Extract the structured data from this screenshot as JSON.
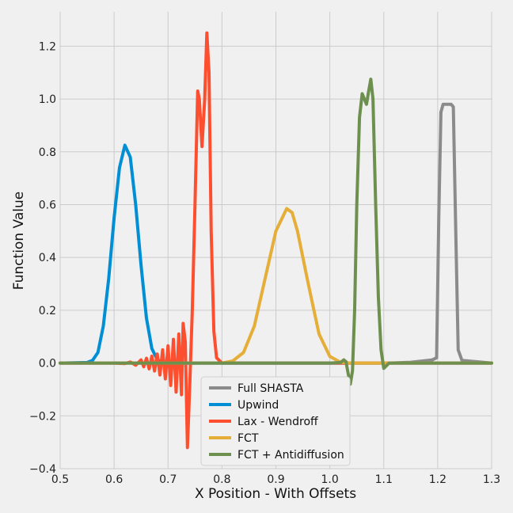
{
  "chart_data": {
    "type": "line",
    "xlabel": "X Position - With Offsets",
    "ylabel": "Function Value",
    "xlim": [
      0.5,
      1.3
    ],
    "ylim": [
      -0.4,
      1.33
    ],
    "xticks": [
      0.5,
      0.6,
      0.7,
      0.8,
      0.9,
      1.0,
      1.1,
      1.2,
      1.3
    ],
    "xtick_labels": [
      "0.5",
      "0.6",
      "0.7",
      "0.8",
      "0.9",
      "1.0",
      "1.1",
      "1.2",
      "1.3"
    ],
    "yticks": [
      -0.4,
      -0.2,
      0.0,
      0.2,
      0.4,
      0.6,
      0.8,
      1.0,
      1.2
    ],
    "ytick_labels": [
      "−0.4",
      "−0.2",
      "0.0",
      "0.2",
      "0.4",
      "0.6",
      "0.8",
      "1.0",
      "1.2"
    ],
    "grid": true,
    "legend_position": "bottom-center",
    "series": [
      {
        "name": "Full SHASTA",
        "color": "#8b8b8b",
        "points": [
          [
            0.5,
            0
          ],
          [
            1.11,
            0
          ],
          [
            1.15,
            0.003
          ],
          [
            1.19,
            0.012
          ],
          [
            1.198,
            0.02
          ],
          [
            1.202,
            0.55
          ],
          [
            1.206,
            0.95
          ],
          [
            1.21,
            0.98
          ],
          [
            1.225,
            0.98
          ],
          [
            1.229,
            0.97
          ],
          [
            1.233,
            0.55
          ],
          [
            1.238,
            0.05
          ],
          [
            1.245,
            0.01
          ],
          [
            1.3,
            0
          ]
        ]
      },
      {
        "name": "Upwind",
        "color": "#008fd5",
        "points": [
          [
            0.5,
            0
          ],
          [
            0.55,
            0.002
          ],
          [
            0.56,
            0.01
          ],
          [
            0.57,
            0.04
          ],
          [
            0.58,
            0.14
          ],
          [
            0.59,
            0.32
          ],
          [
            0.6,
            0.55
          ],
          [
            0.61,
            0.74
          ],
          [
            0.62,
            0.825
          ],
          [
            0.63,
            0.78
          ],
          [
            0.64,
            0.6
          ],
          [
            0.65,
            0.37
          ],
          [
            0.66,
            0.17
          ],
          [
            0.67,
            0.055
          ],
          [
            0.68,
            0.013
          ],
          [
            0.69,
            0.002
          ],
          [
            0.7,
            0
          ],
          [
            1.3,
            0
          ]
        ]
      },
      {
        "name": "Lax - Wendroff",
        "color": "#fc4f30",
        "points": [
          [
            0.5,
            0
          ],
          [
            0.6,
            0
          ],
          [
            0.62,
            -0.002
          ],
          [
            0.63,
            0.004
          ],
          [
            0.64,
            -0.008
          ],
          [
            0.65,
            0.012
          ],
          [
            0.655,
            -0.014
          ],
          [
            0.66,
            0.018
          ],
          [
            0.665,
            -0.022
          ],
          [
            0.67,
            0.026
          ],
          [
            0.675,
            -0.03
          ],
          [
            0.68,
            0.034
          ],
          [
            0.685,
            -0.045
          ],
          [
            0.69,
            0.05
          ],
          [
            0.695,
            -0.06
          ],
          [
            0.7,
            0.065
          ],
          [
            0.705,
            -0.085
          ],
          [
            0.71,
            0.09
          ],
          [
            0.715,
            -0.11
          ],
          [
            0.72,
            0.11
          ],
          [
            0.725,
            -0.12
          ],
          [
            0.728,
            0.15
          ],
          [
            0.732,
            0.08
          ],
          [
            0.736,
            -0.32
          ],
          [
            0.74,
            -0.1
          ],
          [
            0.745,
            0.2
          ],
          [
            0.75,
            0.6
          ],
          [
            0.755,
            1.03
          ],
          [
            0.758,
            1.0
          ],
          [
            0.763,
            0.82
          ],
          [
            0.768,
            1.0
          ],
          [
            0.772,
            1.25
          ],
          [
            0.776,
            1.1
          ],
          [
            0.78,
            0.5
          ],
          [
            0.785,
            0.12
          ],
          [
            0.79,
            0.02
          ],
          [
            0.8,
            0
          ],
          [
            1.3,
            0
          ]
        ]
      },
      {
        "name": "FCT",
        "color": "#e5ae38",
        "points": [
          [
            0.5,
            0
          ],
          [
            0.8,
            0
          ],
          [
            0.82,
            0.008
          ],
          [
            0.84,
            0.04
          ],
          [
            0.86,
            0.14
          ],
          [
            0.88,
            0.32
          ],
          [
            0.9,
            0.5
          ],
          [
            0.92,
            0.585
          ],
          [
            0.93,
            0.57
          ],
          [
            0.94,
            0.5
          ],
          [
            0.96,
            0.3
          ],
          [
            0.98,
            0.11
          ],
          [
            1.0,
            0.025
          ],
          [
            1.02,
            0.003
          ],
          [
            1.04,
            0
          ],
          [
            1.3,
            0
          ]
        ]
      },
      {
        "name": "FCT + Antidiffusion",
        "color": "#6d904f",
        "points": [
          [
            0.5,
            0
          ],
          [
            1.0,
            0
          ],
          [
            1.02,
            0.002
          ],
          [
            1.026,
            0.012
          ],
          [
            1.03,
            0.005
          ],
          [
            1.034,
            -0.04
          ],
          [
            1.038,
            -0.08
          ],
          [
            1.042,
            -0.03
          ],
          [
            1.046,
            0.2
          ],
          [
            1.05,
            0.6
          ],
          [
            1.055,
            0.93
          ],
          [
            1.06,
            1.02
          ],
          [
            1.064,
            1.0
          ],
          [
            1.068,
            0.98
          ],
          [
            1.072,
            1.03
          ],
          [
            1.076,
            1.075
          ],
          [
            1.08,
            1.0
          ],
          [
            1.085,
            0.6
          ],
          [
            1.09,
            0.25
          ],
          [
            1.095,
            0.05
          ],
          [
            1.1,
            -0.02
          ],
          [
            1.105,
            -0.01
          ],
          [
            1.11,
            0
          ],
          [
            1.3,
            0
          ]
        ]
      }
    ]
  }
}
